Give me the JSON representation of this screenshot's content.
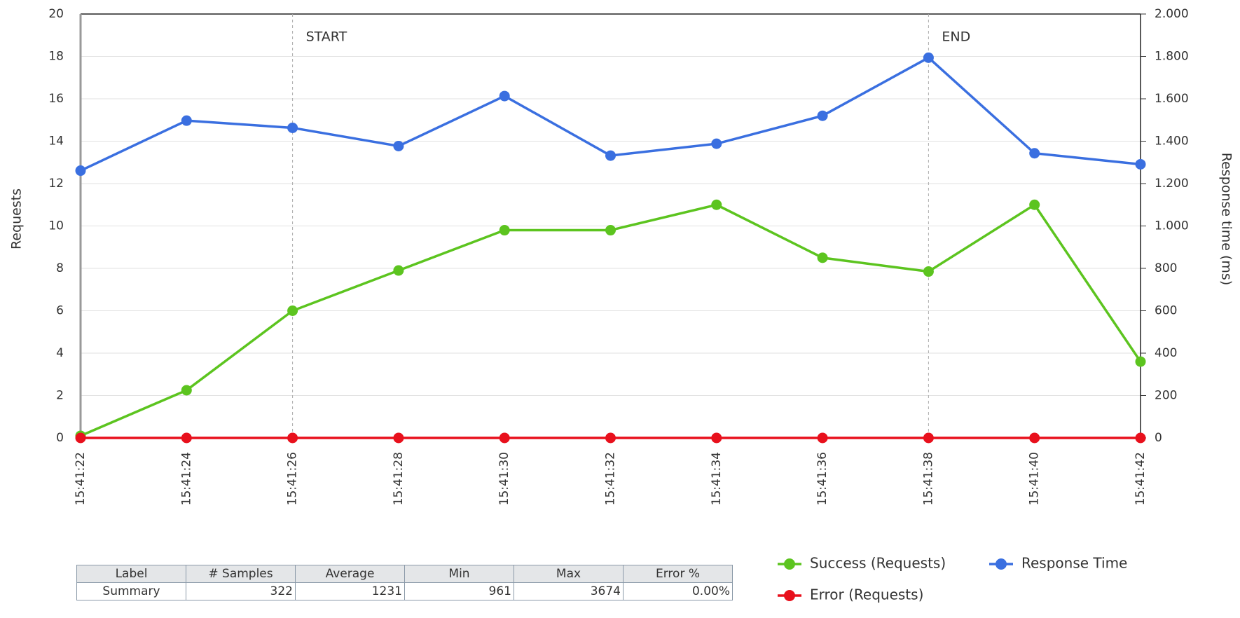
{
  "chart_data": {
    "type": "line",
    "categories": [
      "15:41:22",
      "15:41:24",
      "15:41:26",
      "15:41:28",
      "15:41:30",
      "15:41:32",
      "15:41:34",
      "15:41:36",
      "15:41:38",
      "15:41:40",
      "15:41:42"
    ],
    "series": [
      {
        "name": "Success (Requests)",
        "color": "#5cc41f",
        "values": [
          0.1,
          2.25,
          6,
          7.9,
          9.8,
          9.8,
          11,
          8.5,
          7.85,
          11,
          3.6
        ]
      },
      {
        "name": "Response Time",
        "color": "#3a6fe0",
        "axis": "y2",
        "values": [
          1261,
          1497,
          1463,
          1377,
          1613,
          1332,
          1388,
          1520,
          1794,
          1343,
          1291
        ]
      },
      {
        "name": "Error (Requests)",
        "color": "#e8101c",
        "values": [
          0,
          0,
          0,
          0,
          0,
          0,
          0,
          0,
          0,
          0,
          0
        ]
      }
    ],
    "ylabel": "Requests",
    "y2label": "Response time (ms)",
    "ylim": [
      0,
      20
    ],
    "yticks": [
      0,
      2,
      4,
      6,
      8,
      10,
      12,
      14,
      16,
      18,
      20
    ],
    "y2lim": [
      0,
      2000
    ],
    "y2ticks": [
      0,
      200,
      400,
      600,
      800,
      {
        "value": 1000,
        "label": "1.000"
      },
      {
        "value": 1200,
        "label": "1.200"
      },
      {
        "value": 1400,
        "label": "1.400"
      },
      {
        "value": 1600,
        "label": "1.600"
      },
      {
        "value": 1800,
        "label": "1.800"
      },
      {
        "value": 2000,
        "label": "2.000"
      }
    ],
    "grid": true,
    "annotations": [
      {
        "x": "15:41:26",
        "label": "START"
      },
      {
        "x": "15:41:38",
        "label": "END"
      }
    ]
  },
  "table": {
    "header": [
      "Label",
      "# Samples",
      "Average",
      "Min",
      "Max",
      "Error %"
    ],
    "rows": [
      [
        "Summary",
        "322",
        "1231",
        "961",
        "3674",
        "0.00%"
      ]
    ]
  }
}
